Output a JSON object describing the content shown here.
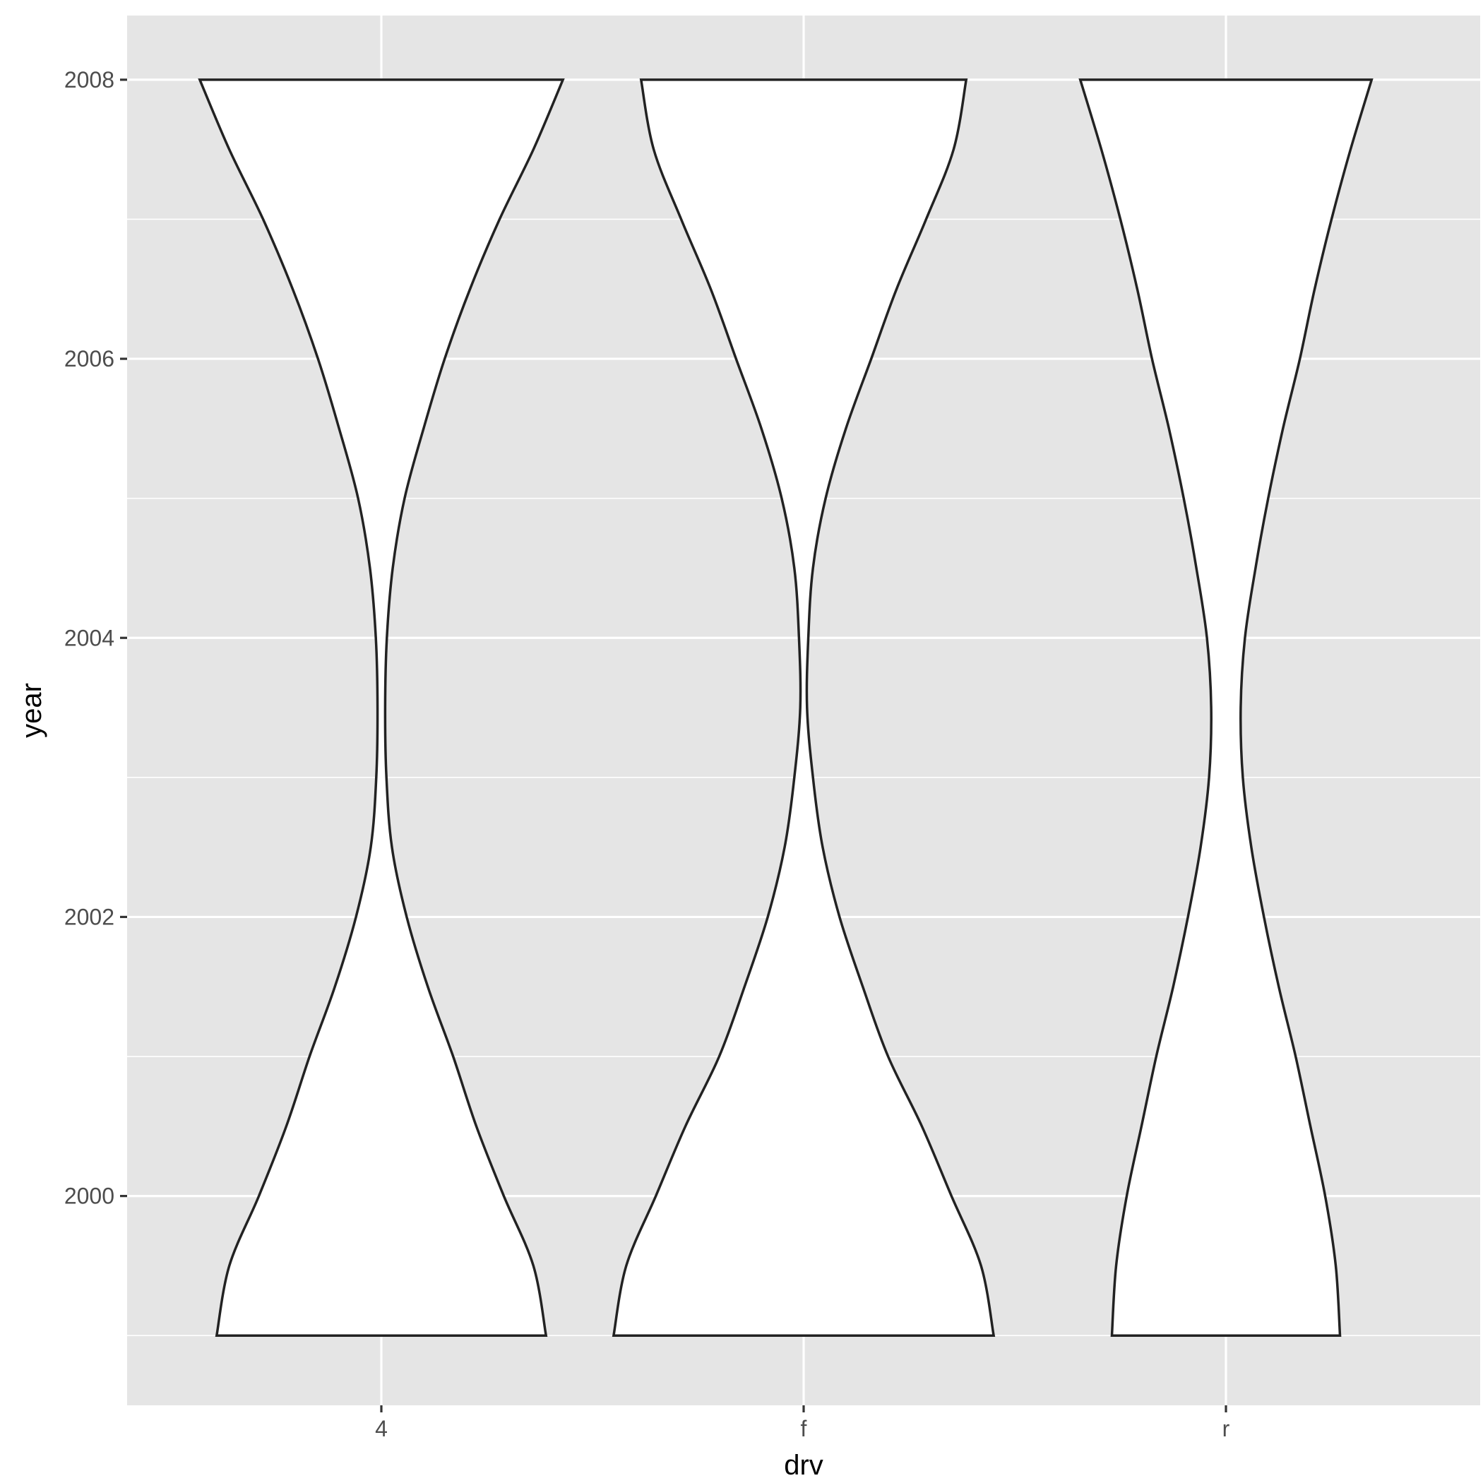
{
  "chart_data": {
    "type": "violin",
    "xlabel": "drv",
    "ylabel": "year",
    "categories": [
      "4",
      "f",
      "r"
    ],
    "y_ticks": [
      2000,
      2002,
      2004,
      2006,
      2008
    ],
    "ylim": [
      1998.5,
      2008.46
    ],
    "grid": true,
    "legend": "none",
    "fill_color": "#ffffff",
    "outline_color": "#222222",
    "panel_color": "#e5e5e5",
    "violins": [
      {
        "category": "4",
        "y_min": 1999,
        "y_max": 2008,
        "density_y": [
          1999,
          1999.5,
          2000,
          2000.5,
          2001,
          2001.5,
          2002,
          2002.5,
          2003,
          2003.5,
          2004,
          2004.5,
          2005,
          2005.5,
          2006,
          2006.5,
          2007,
          2007.5,
          2008
        ],
        "half_width": [
          0.39,
          0.36,
          0.29,
          0.225,
          0.17,
          0.11,
          0.06,
          0.025,
          0.012,
          0.009,
          0.013,
          0.027,
          0.055,
          0.1,
          0.15,
          0.21,
          0.28,
          0.36,
          0.43
        ]
      },
      {
        "category": "f",
        "y_min": 1999,
        "y_max": 2008,
        "density_y": [
          1999,
          1999.5,
          2000,
          2000.5,
          2001,
          2001.5,
          2002,
          2002.5,
          2003,
          2003.5,
          2004,
          2004.5,
          2005,
          2005.5,
          2006,
          2006.5,
          2007,
          2007.5,
          2008
        ],
        "half_width": [
          0.45,
          0.42,
          0.35,
          0.28,
          0.2,
          0.14,
          0.085,
          0.045,
          0.022,
          0.008,
          0.011,
          0.022,
          0.052,
          0.1,
          0.16,
          0.22,
          0.29,
          0.355,
          0.385
        ]
      },
      {
        "category": "r",
        "y_min": 1999,
        "y_max": 2008,
        "density_y": [
          1999,
          1999.5,
          2000,
          2000.5,
          2001,
          2001.5,
          2002,
          2002.5,
          2003,
          2003.5,
          2004,
          2004.5,
          2005,
          2005.5,
          2006,
          2006.5,
          2007,
          2007.5,
          2008
        ],
        "half_width": [
          0.27,
          0.26,
          0.235,
          0.2,
          0.165,
          0.125,
          0.09,
          0.06,
          0.04,
          0.035,
          0.045,
          0.07,
          0.1,
          0.135,
          0.175,
          0.21,
          0.25,
          0.295,
          0.345
        ]
      }
    ]
  }
}
